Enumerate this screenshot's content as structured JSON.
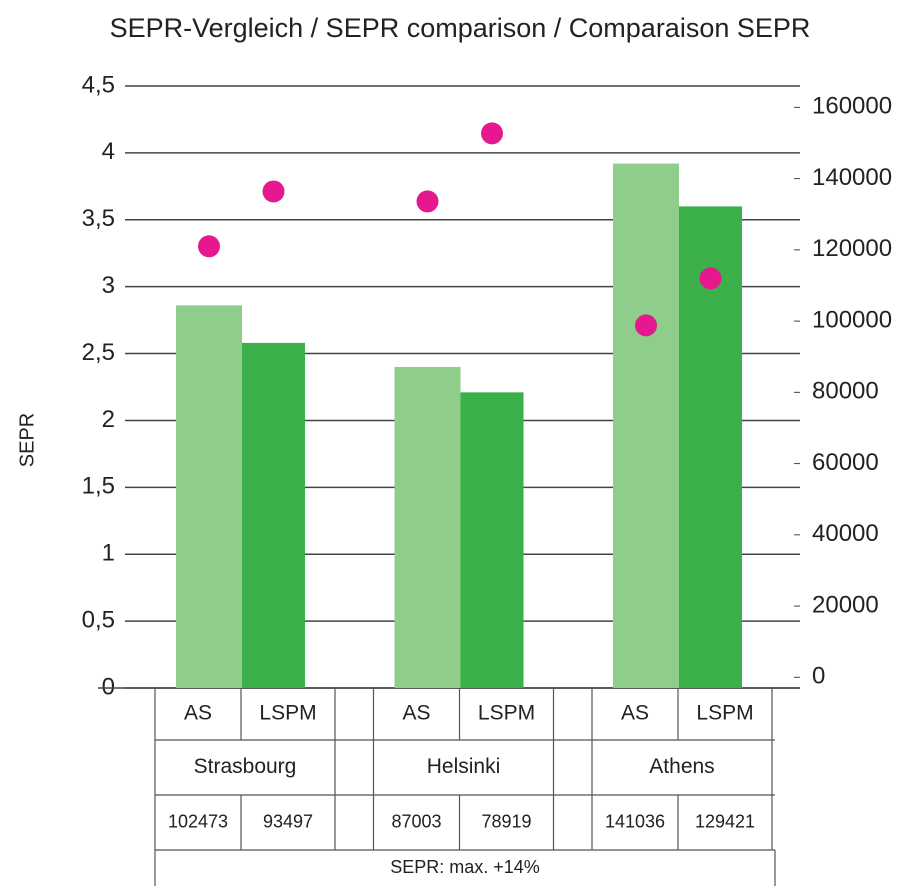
{
  "chart_data": {
    "type": "bar",
    "title": "SEPR-Vergleich / SEPR comparison / Comparaison SEPR",
    "ylabel": "SEPR",
    "categories": [
      "Strasbourg",
      "Helsinki",
      "Athens"
    ],
    "series": [
      {
        "name": "AS",
        "color": "#8fce8a",
        "values": [
          2.86,
          2.4,
          3.92
        ]
      },
      {
        "name": "LSPM",
        "color": "#3bb04a",
        "values": [
          2.58,
          2.21,
          3.6
        ]
      }
    ],
    "points": {
      "color": "#e6188f",
      "axis": "y2",
      "values": [
        [
          121000,
          136400
        ],
        [
          133600,
          152700
        ],
        [
          98800,
          112000
        ]
      ]
    },
    "table_values": [
      [
        102473,
        93497
      ],
      [
        87003,
        78919
      ],
      [
        141036,
        129421
      ]
    ],
    "note": "SEPR: max. +14%",
    "ylim": [
      0,
      4.5
    ],
    "yticks": [
      0,
      {
        "value": 0.5,
        "label": "0,5"
      },
      1,
      {
        "value": 1.5,
        "label": "1,5"
      },
      2,
      {
        "value": 2.5,
        "label": "2,5"
      },
      3,
      {
        "value": 3.5,
        "label": "3,5"
      },
      4,
      {
        "value": 4.5,
        "label": "4,5"
      }
    ],
    "y2lim": [
      -3000,
      166000
    ],
    "y2ticks": [
      0,
      20000,
      40000,
      60000,
      80000,
      100000,
      120000,
      140000,
      160000
    ],
    "grid": true
  }
}
